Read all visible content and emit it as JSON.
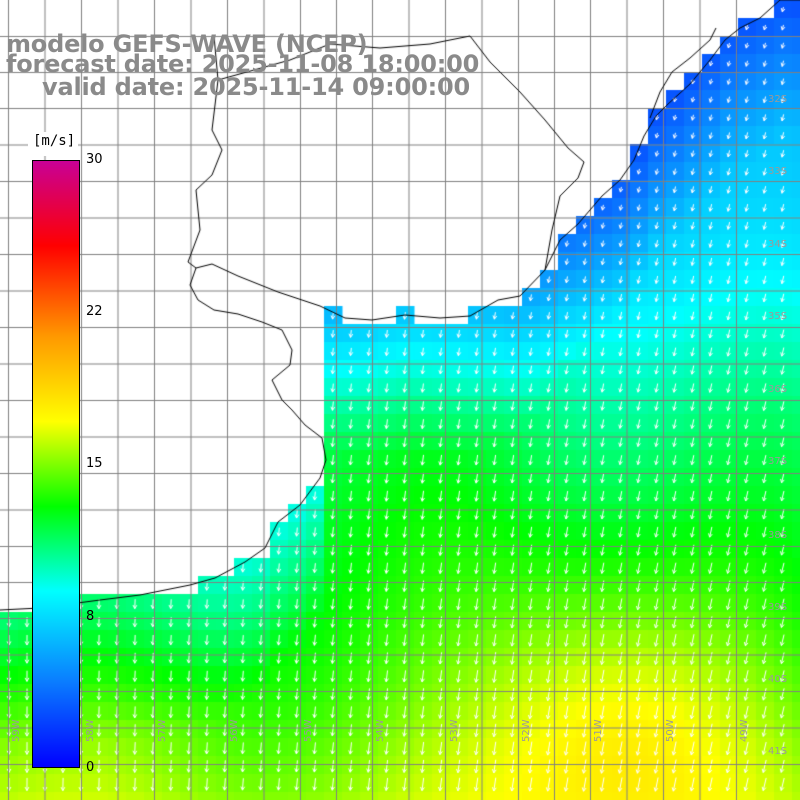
{
  "titles": {
    "line1": "modelo GEFS-WAVE (NCEP)",
    "line2": "forecast date: 2025-11-08 18:00:00",
    "line3": "valid date: 2025-11-14 09:00:00"
  },
  "colorbar": {
    "unit": "[m/s]",
    "ticks": [
      {
        "label": "30",
        "value": 30
      },
      {
        "label": "22",
        "value": 22
      },
      {
        "label": "15",
        "value": 15
      },
      {
        "label": "8",
        "value": 8
      },
      {
        "label": "0",
        "value": 0
      }
    ],
    "colors": [
      "#0000ff",
      "#0a7cff",
      "#00ffff",
      "#00ff00",
      "#ffff00",
      "#ff9900",
      "#ff0000",
      "#c80096"
    ]
  },
  "longitude_labels": [
    "59W",
    "58W",
    "57W",
    "56W",
    "55W",
    "54W",
    "53W",
    "52W",
    "51W",
    "50W",
    "49W"
  ],
  "latitude_labels": [
    "32S",
    "33S",
    "34S",
    "35S",
    "36S",
    "37S",
    "38S",
    "39S",
    "40S",
    "41S"
  ],
  "map": {
    "land_color": "#ffffff",
    "grid_color": "#808080",
    "coast_color": "#000000",
    "arrow_color": "#ffffff",
    "field": "wind speed at 10 m",
    "wind_direction": "from north to north-northeast, arrows pointing south / south-southwest"
  }
}
